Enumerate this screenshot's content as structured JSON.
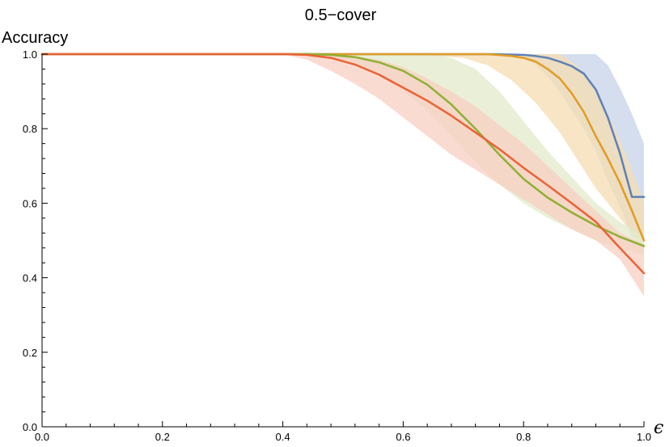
{
  "chart_data": {
    "type": "line",
    "title": "0.5−cover",
    "xlabel": "ϵ",
    "ylabel": "Accuracy",
    "xlim": [
      0,
      1
    ],
    "ylim": [
      0,
      1
    ],
    "x_ticks": [
      0.0,
      0.2,
      0.4,
      0.6,
      0.8,
      1.0
    ],
    "y_ticks": [
      0.0,
      0.2,
      0.4,
      0.6,
      0.8,
      1.0
    ],
    "x_tick_labels": [
      "0.0",
      "0.2",
      "0.4",
      "0.6",
      "0.8",
      "1.0"
    ],
    "y_tick_labels": [
      "0.0",
      "0.2",
      "0.4",
      "0.6",
      "0.8",
      "1.0"
    ],
    "grid": false,
    "legend": "none",
    "series": [
      {
        "color": "#5e81b5",
        "band_color": "#c6d3e8",
        "x": [
          0.0,
          0.4,
          0.7,
          0.75,
          0.8,
          0.82,
          0.84,
          0.86,
          0.88,
          0.9,
          0.92,
          0.94,
          0.96,
          0.98,
          1.0
        ],
        "y": [
          1.0,
          1.0,
          1.0,
          1.0,
          0.998,
          0.995,
          0.99,
          0.98,
          0.968,
          0.948,
          0.905,
          0.83,
          0.735,
          0.617,
          0.617
        ],
        "lower": [
          1.0,
          1.0,
          1.0,
          0.998,
          0.99,
          0.97,
          0.94,
          0.9,
          0.85,
          0.8,
          0.74,
          0.66,
          0.59,
          0.51,
          0.5
        ],
        "upper": [
          1.0,
          1.0,
          1.0,
          1.0,
          1.0,
          1.0,
          1.0,
          1.0,
          1.0,
          1.0,
          1.0,
          0.97,
          0.91,
          0.84,
          0.76
        ]
      },
      {
        "color": "#e19c24",
        "band_color": "#f6dcb1",
        "x": [
          0.0,
          0.4,
          0.5,
          0.6,
          0.7,
          0.74,
          0.78,
          0.8,
          0.82,
          0.84,
          0.86,
          0.88,
          0.9,
          0.92,
          0.94,
          0.96,
          0.98,
          1.0
        ],
        "y": [
          1.0,
          1.0,
          1.0,
          1.0,
          1.0,
          1.0,
          0.995,
          0.99,
          0.98,
          0.96,
          0.935,
          0.895,
          0.845,
          0.78,
          0.72,
          0.655,
          0.58,
          0.5
        ],
        "lower": [
          1.0,
          1.0,
          1.0,
          1.0,
          0.99,
          0.97,
          0.93,
          0.9,
          0.87,
          0.83,
          0.79,
          0.74,
          0.69,
          0.64,
          0.6,
          0.56,
          0.52,
          0.47
        ],
        "upper": [
          1.0,
          1.0,
          1.0,
          1.0,
          1.0,
          1.0,
          1.0,
          1.0,
          1.0,
          1.0,
          1.0,
          0.98,
          0.95,
          0.9,
          0.84,
          0.77,
          0.69,
          0.6
        ]
      },
      {
        "color": "#8fb032",
        "band_color": "#e2ebc9",
        "x": [
          0.0,
          0.4,
          0.44,
          0.48,
          0.52,
          0.56,
          0.6,
          0.64,
          0.68,
          0.72,
          0.76,
          0.8,
          0.84,
          0.88,
          0.92,
          0.96,
          1.0
        ],
        "y": [
          1.0,
          1.0,
          1.0,
          0.998,
          0.992,
          0.978,
          0.955,
          0.918,
          0.865,
          0.8,
          0.73,
          0.665,
          0.615,
          0.575,
          0.54,
          0.51,
          0.485
        ],
        "lower": [
          1.0,
          1.0,
          0.995,
          0.985,
          0.97,
          0.94,
          0.9,
          0.85,
          0.78,
          0.71,
          0.65,
          0.6,
          0.56,
          0.53,
          0.5,
          0.48,
          0.46
        ],
        "upper": [
          1.0,
          1.0,
          1.0,
          1.0,
          1.0,
          1.0,
          1.0,
          1.0,
          0.99,
          0.96,
          0.9,
          0.82,
          0.74,
          0.67,
          0.6,
          0.55,
          0.51
        ]
      },
      {
        "color": "#eb6235",
        "band_color": "#f8cfc3",
        "x": [
          0.0,
          0.4,
          0.44,
          0.48,
          0.52,
          0.56,
          0.6,
          0.64,
          0.68,
          0.72,
          0.76,
          0.8,
          0.84,
          0.88,
          0.92,
          0.96,
          1.0
        ],
        "y": [
          1.0,
          1.0,
          0.998,
          0.99,
          0.972,
          0.945,
          0.91,
          0.875,
          0.835,
          0.79,
          0.745,
          0.695,
          0.648,
          0.6,
          0.55,
          0.48,
          0.412
        ],
        "lower": [
          1.0,
          1.0,
          0.985,
          0.955,
          0.92,
          0.88,
          0.83,
          0.78,
          0.73,
          0.69,
          0.65,
          0.61,
          0.57,
          0.53,
          0.5,
          0.45,
          0.35
        ],
        "upper": [
          1.0,
          1.0,
          1.0,
          1.0,
          0.995,
          0.985,
          0.965,
          0.935,
          0.9,
          0.86,
          0.81,
          0.76,
          0.7,
          0.64,
          0.58,
          0.52,
          0.49
        ]
      }
    ]
  }
}
